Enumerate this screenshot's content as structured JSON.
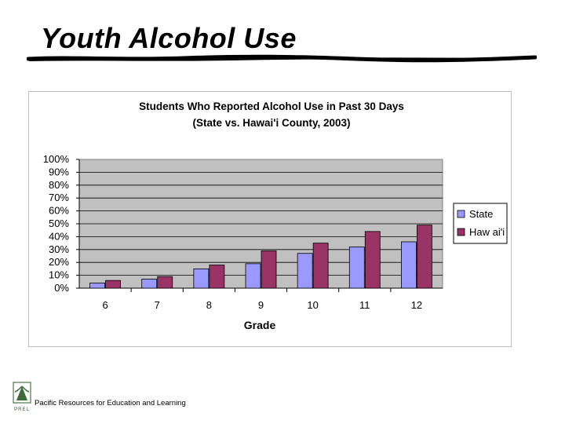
{
  "slide": {
    "title": "Youth Alcohol Use"
  },
  "footer": {
    "org_name": "Pacific Resources for Education and Learning",
    "logo_text": "PREL"
  },
  "colors": {
    "state": "#9999ff",
    "hawaii": "#993366",
    "plot_bg": "#c0c0c0"
  },
  "chart_data": {
    "type": "bar",
    "title": "Students Who Reported Alcohol Use in Past 30 Days",
    "subtitle": "(State vs. Hawai'i County, 2003)",
    "xlabel": "Grade",
    "ylabel": "",
    "categories": [
      "6",
      "7",
      "8",
      "9",
      "10",
      "11",
      "12"
    ],
    "series": [
      {
        "name": "State",
        "values": [
          4,
          7,
          15,
          19,
          27,
          32,
          36
        ]
      },
      {
        "name": "Haw ai'i",
        "values": [
          6,
          9,
          18,
          29,
          35,
          44,
          49
        ]
      }
    ],
    "ylim": [
      0,
      100
    ],
    "yticks": [
      "0%",
      "10%",
      "20%",
      "30%",
      "40%",
      "50%",
      "60%",
      "70%",
      "80%",
      "90%",
      "100%"
    ],
    "grid": true,
    "legend_position": "right"
  }
}
